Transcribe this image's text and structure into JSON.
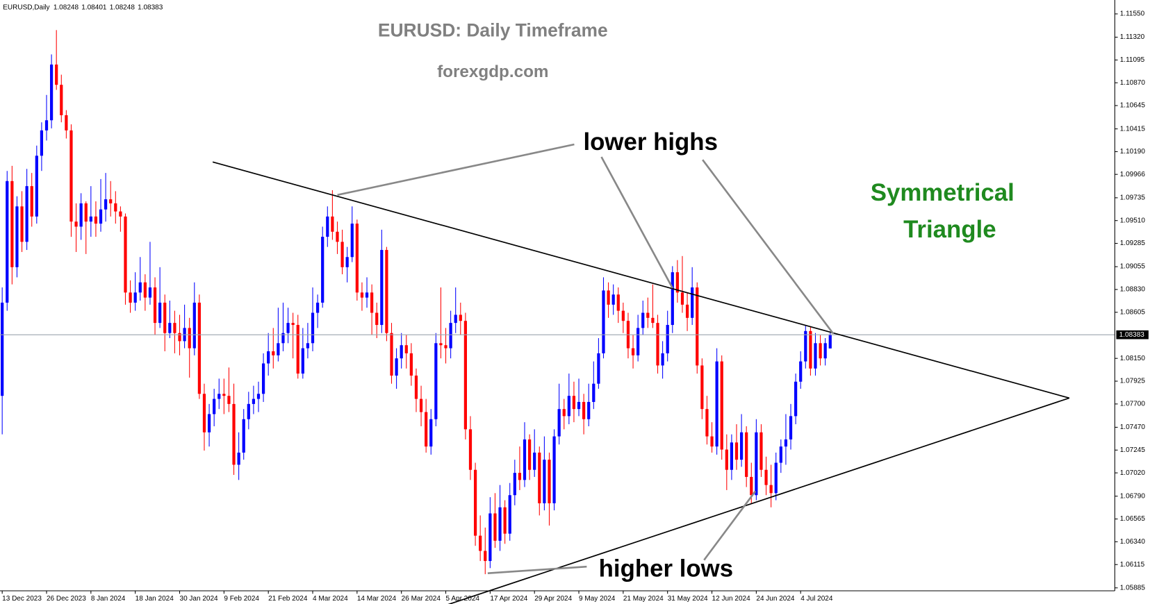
{
  "chart_data": {
    "type": "candlestick",
    "symbol": "EURUSD,Daily",
    "title": "EURUSD: Daily Timeframe",
    "subtitle": "forexgdp.com",
    "annotations": {
      "upper": "lower highs",
      "lower": "higher lows"
    },
    "pattern_label": [
      "Symmetrical",
      "Triangle"
    ],
    "up_color": "#0000ff",
    "down_color": "#ff0000",
    "ylim": [
      1.05856,
      1.11687
    ],
    "yticks": [
      {
        "value": 1.1155,
        "label": "1.11550"
      },
      {
        "value": 1.1132,
        "label": "1.11320"
      },
      {
        "value": 1.11095,
        "label": "1.11095"
      },
      {
        "value": 1.1087,
        "label": "1.10870"
      },
      {
        "value": 1.10645,
        "label": "1.10645"
      },
      {
        "value": 1.10415,
        "label": "1.10415"
      },
      {
        "value": 1.1019,
        "label": "1.10190"
      },
      {
        "value": 1.09966,
        "label": "1.09966"
      },
      {
        "value": 1.09735,
        "label": "1.09735"
      },
      {
        "value": 1.0951,
        "label": "1.09510"
      },
      {
        "value": 1.09285,
        "label": "1.09285"
      },
      {
        "value": 1.09055,
        "label": "1.09055"
      },
      {
        "value": 1.0883,
        "label": "1.08830"
      },
      {
        "value": 1.08605,
        "label": "1.08605"
      },
      {
        "value": 1.0815,
        "label": "1.08150"
      },
      {
        "value": 1.07925,
        "label": "1.07925"
      },
      {
        "value": 1.077,
        "label": "1.07700"
      },
      {
        "value": 1.0747,
        "label": "1.07470"
      },
      {
        "value": 1.07245,
        "label": "1.07245"
      },
      {
        "value": 1.0702,
        "label": "1.07020"
      },
      {
        "value": 1.0679,
        "label": "1.06790"
      },
      {
        "value": 1.06565,
        "label": "1.06565"
      },
      {
        "value": 1.0634,
        "label": "1.06340"
      },
      {
        "value": 1.06115,
        "label": "1.06115"
      },
      {
        "value": 1.05885,
        "label": "1.05885"
      }
    ],
    "categories": [
      "13 Dec 2023",
      null,
      null,
      null,
      null,
      null,
      null,
      null,
      null,
      "26 Dec 2023",
      null,
      null,
      null,
      null,
      null,
      null,
      null,
      null,
      "8 Jan 2024",
      null,
      null,
      null,
      null,
      null,
      null,
      null,
      null,
      "18 Jan 2024",
      null,
      null,
      null,
      null,
      null,
      null,
      null,
      null,
      "30 Jan 2024",
      null,
      null,
      null,
      null,
      null,
      null,
      null,
      null,
      "9 Feb 2024",
      null,
      null,
      null,
      null,
      null,
      null,
      null,
      null,
      "21 Feb 2024",
      null,
      null,
      null,
      null,
      null,
      null,
      null,
      null,
      "4 Mar 2024",
      null,
      null,
      null,
      null,
      null,
      null,
      null,
      null,
      "14 Mar 2024",
      null,
      null,
      null,
      null,
      null,
      null,
      null,
      null,
      "26 Mar 2024",
      null,
      null,
      null,
      null,
      null,
      null,
      null,
      null,
      "5 Apr 2024",
      null,
      null,
      null,
      null,
      null,
      null,
      null,
      null,
      "17 Apr 2024",
      null,
      null,
      null,
      null,
      null,
      null,
      null,
      null,
      "29 Apr 2024",
      null,
      null,
      null,
      null,
      null,
      null,
      null,
      null,
      "9 May 2024",
      null,
      null,
      null,
      null,
      null,
      null,
      null,
      null,
      "21 May 2024",
      null,
      null,
      null,
      null,
      null,
      null,
      null,
      null,
      "31 May 2024",
      null,
      null,
      null,
      null,
      null,
      null,
      null,
      null,
      "12 Jun 2024",
      null,
      null,
      null,
      null,
      null,
      null,
      null,
      null,
      "24 Jun 2024",
      null,
      null,
      null,
      null,
      null,
      null,
      null,
      null,
      "4 Jul 2024",
      null,
      null,
      null,
      null,
      null,
      null
    ],
    "ohlc": [
      [
        1.0778,
        1.0885,
        1.074,
        1.087
      ],
      [
        1.087,
        1.1,
        1.0862,
        1.099
      ],
      [
        1.099,
        1.1005,
        1.0888,
        1.0905
      ],
      [
        1.0905,
        1.0975,
        1.0895,
        1.0965
      ],
      [
        1.0965,
        1.098,
        1.092,
        1.093
      ],
      [
        1.093,
        1.1002,
        1.0922,
        1.0985
      ],
      [
        1.0985,
        1.0998,
        1.0945,
        1.0955
      ],
      [
        1.0955,
        1.1025,
        1.0948,
        1.1015
      ],
      [
        1.1015,
        1.1048,
        1.1,
        1.104
      ],
      [
        1.104,
        1.1075,
        1.103,
        1.105
      ],
      [
        1.105,
        1.1115,
        1.1042,
        1.1105
      ],
      [
        1.1105,
        1.1139,
        1.108,
        1.1085
      ],
      [
        1.1085,
        1.1095,
        1.1048,
        1.1055
      ],
      [
        1.1055,
        1.106,
        1.1032,
        1.104
      ],
      [
        1.104,
        1.1046,
        1.0935,
        1.095
      ],
      [
        1.095,
        1.0968,
        1.092,
        1.0945
      ],
      [
        1.0945,
        1.0978,
        1.0932,
        1.0968
      ],
      [
        1.0968,
        1.097,
        1.0918,
        1.095
      ],
      [
        1.095,
        1.0985,
        1.0935,
        1.0955
      ],
      [
        1.0955,
        1.097,
        1.0935,
        1.0948
      ],
      [
        1.0948,
        1.0992,
        1.094,
        1.0962
      ],
      [
        1.0962,
        1.0998,
        1.095,
        1.0972
      ],
      [
        1.0972,
        1.099,
        1.0955,
        1.0968
      ],
      [
        1.0968,
        1.098,
        1.0948,
        1.096
      ],
      [
        1.096,
        1.0965,
        1.094,
        1.0955
      ],
      [
        1.0955,
        1.0958,
        1.0868,
        1.088
      ],
      [
        1.088,
        1.0892,
        1.086,
        1.087
      ],
      [
        1.087,
        1.09,
        1.0862,
        1.088
      ],
      [
        1.088,
        1.0915,
        1.0872,
        1.089
      ],
      [
        1.089,
        1.0898,
        1.0862,
        1.0875
      ],
      [
        1.0875,
        1.093,
        1.0868,
        1.0885
      ],
      [
        1.0885,
        1.0895,
        1.0838,
        1.085
      ],
      [
        1.085,
        1.0905,
        1.0845,
        1.087
      ],
      [
        1.087,
        1.0878,
        1.0822,
        1.084
      ],
      [
        1.084,
        1.0872,
        1.0835,
        1.085
      ],
      [
        1.085,
        1.0862,
        1.082,
        1.084
      ],
      [
        1.084,
        1.0858,
        1.0818,
        1.0832
      ],
      [
        1.0832,
        1.0868,
        1.0825,
        1.0845
      ],
      [
        1.0845,
        1.0855,
        1.0796,
        1.0825
      ],
      [
        1.0825,
        1.089,
        1.0818,
        1.087
      ],
      [
        1.087,
        1.0878,
        1.0775,
        1.078
      ],
      [
        1.078,
        1.079,
        1.0724,
        1.0742
      ],
      [
        1.0742,
        1.077,
        1.0728,
        1.076
      ],
      [
        1.076,
        1.0785,
        1.0748,
        1.0775
      ],
      [
        1.0775,
        1.0795,
        1.0765,
        1.078
      ],
      [
        1.078,
        1.0795,
        1.076,
        1.0778
      ],
      [
        1.0778,
        1.0806,
        1.0762,
        1.077
      ],
      [
        1.077,
        1.079,
        1.07,
        1.071
      ],
      [
        1.071,
        1.0742,
        1.0695,
        1.0722
      ],
      [
        1.0722,
        1.0765,
        1.0715,
        1.0755
      ],
      [
        1.0755,
        1.0782,
        1.0745,
        1.077
      ],
      [
        1.077,
        1.0788,
        1.076,
        1.0775
      ],
      [
        1.0775,
        1.0792,
        1.0762,
        1.078
      ],
      [
        1.078,
        1.082,
        1.0772,
        1.081
      ],
      [
        1.081,
        1.084,
        1.0798,
        1.0822
      ],
      [
        1.0822,
        1.0845,
        1.0805,
        1.0818
      ],
      [
        1.0818,
        1.0865,
        1.0812,
        1.083
      ],
      [
        1.083,
        1.087,
        1.0822,
        1.084
      ],
      [
        1.084,
        1.0865,
        1.083,
        1.085
      ],
      [
        1.085,
        1.086,
        1.0815,
        1.0848
      ],
      [
        1.0848,
        1.0858,
        1.0795,
        1.08
      ],
      [
        1.08,
        1.0845,
        1.0795,
        1.0825
      ],
      [
        1.0825,
        1.085,
        1.0815,
        1.083
      ],
      [
        1.083,
        1.0885,
        1.0822,
        1.086
      ],
      [
        1.086,
        1.0878,
        1.0845,
        1.087
      ],
      [
        1.087,
        1.0945,
        1.0865,
        1.0935
      ],
      [
        1.0935,
        1.0965,
        1.0925,
        1.0955
      ],
      [
        1.0955,
        1.0981,
        1.0932,
        1.094
      ],
      [
        1.094,
        1.095,
        1.0918,
        1.093
      ],
      [
        1.093,
        1.0942,
        1.0898,
        1.0905
      ],
      [
        1.0905,
        1.0925,
        1.089,
        1.0915
      ],
      [
        1.0915,
        1.0965,
        1.091,
        1.0948
      ],
      [
        1.0948,
        1.0952,
        1.0872,
        1.088
      ],
      [
        1.088,
        1.089,
        1.0862,
        1.0875
      ],
      [
        1.0875,
        1.0895,
        1.0865,
        1.088
      ],
      [
        1.088,
        1.0888,
        1.0838,
        1.086
      ],
      [
        1.086,
        1.087,
        1.0835,
        1.0848
      ],
      [
        1.0848,
        1.0942,
        1.084,
        1.0922
      ],
      [
        1.0922,
        1.0925,
        1.0832,
        1.084
      ],
      [
        1.084,
        1.085,
        1.079,
        1.0798
      ],
      [
        1.0798,
        1.0825,
        1.0785,
        1.0815
      ],
      [
        1.0815,
        1.084,
        1.0805,
        1.0828
      ],
      [
        1.0828,
        1.0838,
        1.0805,
        1.082
      ],
      [
        1.082,
        1.083,
        1.0788,
        1.0798
      ],
      [
        1.0798,
        1.0805,
        1.0762,
        1.0775
      ],
      [
        1.0775,
        1.0788,
        1.0748,
        1.0762
      ],
      [
        1.0762,
        1.0775,
        1.0722,
        1.0728
      ],
      [
        1.0728,
        1.0765,
        1.072,
        1.0755
      ],
      [
        1.0755,
        1.084,
        1.0748,
        1.083
      ],
      [
        1.083,
        1.0885,
        1.0815,
        1.0828
      ],
      [
        1.0828,
        1.0845,
        1.081,
        1.0825
      ],
      [
        1.0825,
        1.0862,
        1.0815,
        1.085
      ],
      [
        1.085,
        1.0885,
        1.084,
        1.0858
      ],
      [
        1.0858,
        1.087,
        1.0838,
        1.0852
      ],
      [
        1.0852,
        1.086,
        1.0735,
        1.0745
      ],
      [
        1.0745,
        1.0758,
        1.0695,
        1.0705
      ],
      [
        1.0705,
        1.0712,
        1.063,
        1.064
      ],
      [
        1.064,
        1.066,
        1.0615,
        1.0625
      ],
      [
        1.0625,
        1.0648,
        1.0602,
        1.0615
      ],
      [
        1.0615,
        1.0678,
        1.0608,
        1.0662
      ],
      [
        1.0662,
        1.0682,
        1.0628,
        1.0635
      ],
      [
        1.0635,
        1.069,
        1.0625,
        1.0668
      ],
      [
        1.0668,
        1.0675,
        1.0632,
        1.0642
      ],
      [
        1.0642,
        1.0692,
        1.0635,
        1.068
      ],
      [
        1.068,
        1.0715,
        1.067,
        1.0702
      ],
      [
        1.0702,
        1.0728,
        1.0685,
        1.0695
      ],
      [
        1.0695,
        1.0752,
        1.0688,
        1.0735
      ],
      [
        1.0735,
        1.074,
        1.0695,
        1.0705
      ],
      [
        1.0705,
        1.0745,
        1.0698,
        1.0722
      ],
      [
        1.0722,
        1.0728,
        1.066,
        1.0672
      ],
      [
        1.0672,
        1.0738,
        1.0665,
        1.0715
      ],
      [
        1.0715,
        1.0722,
        1.065,
        1.0672
      ],
      [
        1.0672,
        1.0745,
        1.0665,
        1.0738
      ],
      [
        1.0738,
        1.079,
        1.073,
        1.0765
      ],
      [
        1.0765,
        1.0775,
        1.0745,
        1.0758
      ],
      [
        1.0758,
        1.08,
        1.075,
        1.0778
      ],
      [
        1.0778,
        1.0792,
        1.0752,
        1.0765
      ],
      [
        1.0765,
        1.0795,
        1.0758,
        1.0772
      ],
      [
        1.0772,
        1.078,
        1.074,
        1.0755
      ],
      [
        1.0755,
        1.079,
        1.0748,
        1.0772
      ],
      [
        1.0772,
        1.0812,
        1.0765,
        1.079
      ],
      [
        1.079,
        1.0835,
        1.0785,
        1.082
      ],
      [
        1.082,
        1.0895,
        1.0815,
        1.0882
      ],
      [
        1.0882,
        1.089,
        1.0855,
        1.0868
      ],
      [
        1.0868,
        1.0888,
        1.0858,
        1.0878
      ],
      [
        1.0878,
        1.0885,
        1.085,
        1.0862
      ],
      [
        1.0862,
        1.087,
        1.084,
        1.0852
      ],
      [
        1.0852,
        1.086,
        1.0815,
        1.0825
      ],
      [
        1.0825,
        1.0838,
        1.0805,
        1.0818
      ],
      [
        1.0818,
        1.0858,
        1.0812,
        1.0845
      ],
      [
        1.0845,
        1.0872,
        1.0838,
        1.086
      ],
      [
        1.086,
        1.0875,
        1.0845,
        1.0855
      ],
      [
        1.0855,
        1.0888,
        1.0845,
        1.085
      ],
      [
        1.085,
        1.0858,
        1.08,
        1.0808
      ],
      [
        1.0808,
        1.0832,
        1.0795,
        1.082
      ],
      [
        1.082,
        1.0862,
        1.0812,
        1.0848
      ],
      [
        1.0848,
        1.0906,
        1.084,
        1.09
      ],
      [
        1.09,
        1.0912,
        1.087,
        1.088
      ],
      [
        1.088,
        1.0916,
        1.086,
        1.0868
      ],
      [
        1.0868,
        1.088,
        1.0842,
        1.0855
      ],
      [
        1.0855,
        1.0905,
        1.0848,
        1.0885
      ],
      [
        1.0885,
        1.089,
        1.08,
        1.0808
      ],
      [
        1.0808,
        1.0815,
        1.0755,
        1.0765
      ],
      [
        1.0765,
        1.0778,
        1.073,
        1.0738
      ],
      [
        1.0738,
        1.0752,
        1.0722,
        1.0728
      ],
      [
        1.0728,
        1.0825,
        1.072,
        1.0812
      ],
      [
        1.0812,
        1.0818,
        1.0715,
        1.0725
      ],
      [
        1.0725,
        1.074,
        1.0685,
        1.0705
      ],
      [
        1.0705,
        1.074,
        1.0695,
        1.0732
      ],
      [
        1.0732,
        1.075,
        1.0705,
        1.0715
      ],
      [
        1.0715,
        1.076,
        1.0708,
        1.0742
      ],
      [
        1.0742,
        1.0748,
        1.0688,
        1.0698
      ],
      [
        1.0698,
        1.0712,
        1.0672,
        1.068
      ],
      [
        1.068,
        1.0755,
        1.0675,
        1.0742
      ],
      [
        1.0742,
        1.075,
        1.0698,
        1.0705
      ],
      [
        1.0705,
        1.0718,
        1.068,
        1.069
      ],
      [
        1.069,
        1.071,
        1.0668,
        1.0682
      ],
      [
        1.0682,
        1.0722,
        1.0675,
        1.0712
      ],
      [
        1.0712,
        1.0735,
        1.0702,
        1.0728
      ],
      [
        1.0728,
        1.076,
        1.071,
        1.0735
      ],
      [
        1.0735,
        1.077,
        1.0725,
        1.0758
      ],
      [
        1.0758,
        1.08,
        1.075,
        1.0792
      ],
      [
        1.0792,
        1.0822,
        1.0785,
        1.0812
      ],
      [
        1.0812,
        1.0848,
        1.0805,
        1.0842
      ],
      [
        1.0842,
        1.0846,
        1.0798,
        1.0805
      ],
      [
        1.0805,
        1.084,
        1.0798,
        1.083
      ],
      [
        1.083,
        1.0838,
        1.0808,
        1.0815
      ],
      [
        1.0815,
        1.0835,
        1.0808,
        1.083
      ],
      [
        1.08248,
        1.08401,
        1.08248,
        1.08383
      ]
    ]
  }
}
